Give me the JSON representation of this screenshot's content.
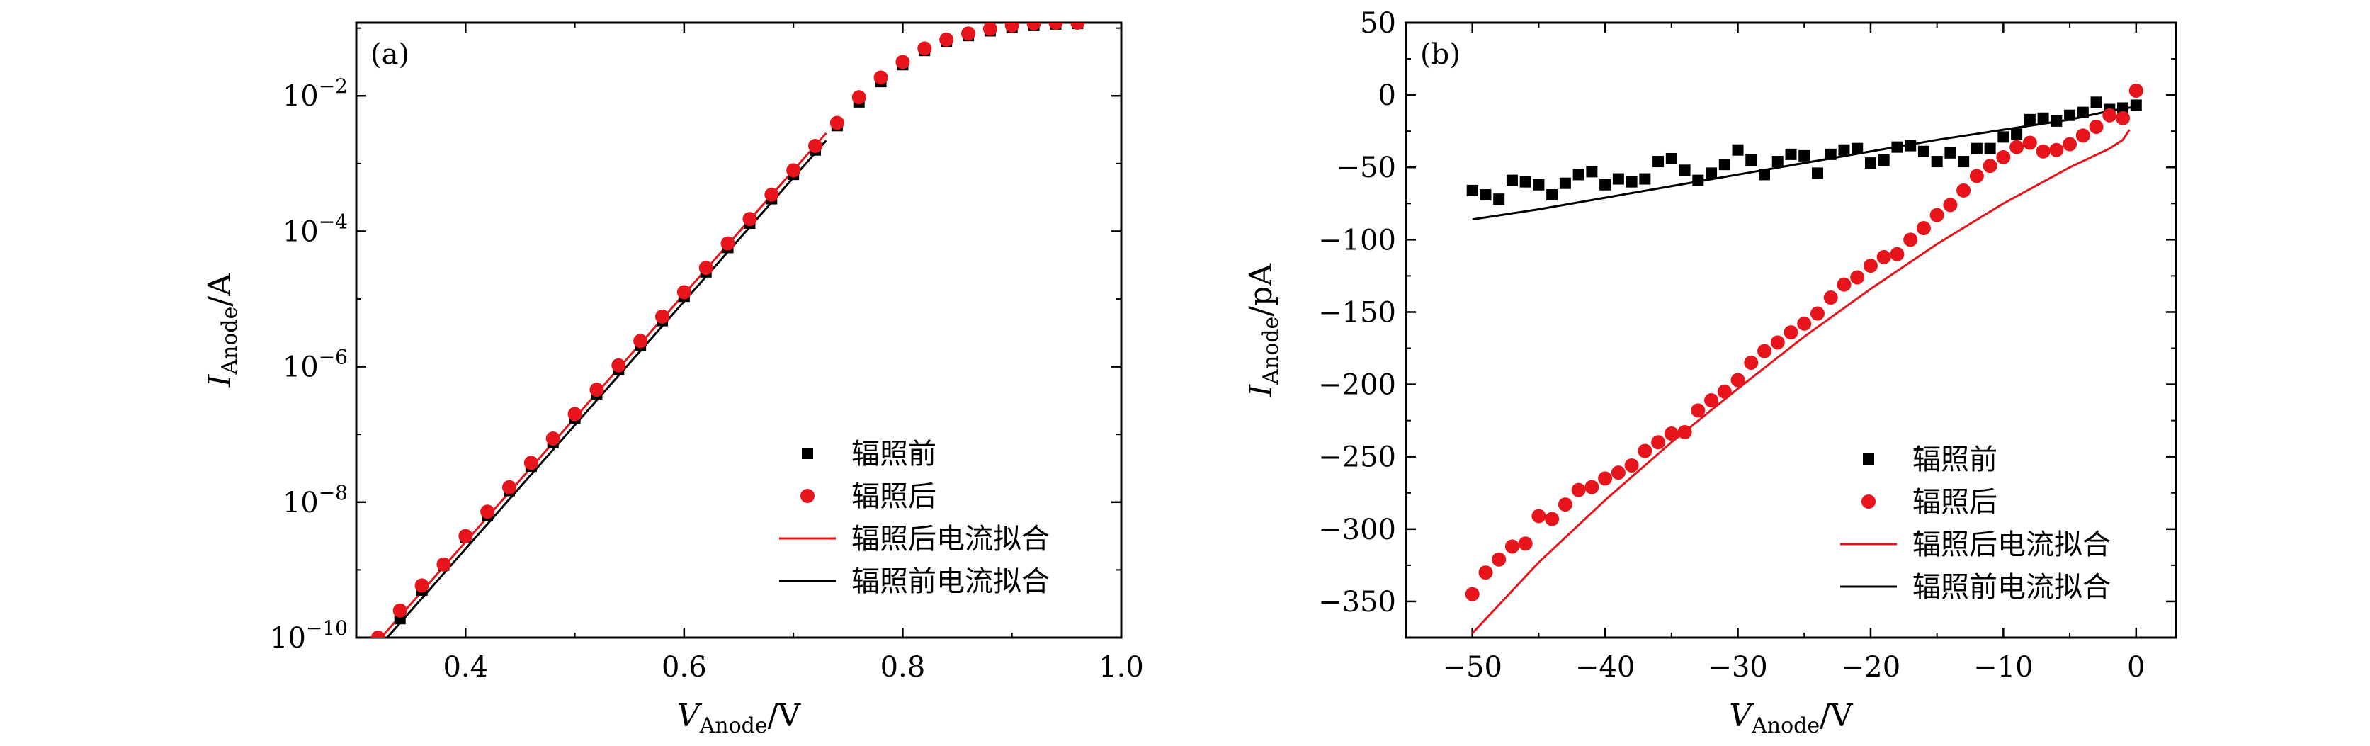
{
  "chart_data": [
    {
      "id": "a",
      "type": "scatter",
      "panel_label": "(a)",
      "xlabel": {
        "main": "V",
        "sub": "Anode",
        "unit": "/V"
      },
      "ylabel": {
        "main": "I",
        "sub": "Anode",
        "unit": "/A"
      },
      "xlim": [
        0.3,
        1.0
      ],
      "ylim_log10": [
        -10,
        -0.92
      ],
      "yscale": "log",
      "x_ticks": [
        {
          "value": 0.4,
          "label": "0.4"
        },
        {
          "value": 0.6,
          "label": "0.6"
        },
        {
          "value": 0.8,
          "label": "0.8"
        },
        {
          "value": 1.0,
          "label": "1.0"
        }
      ],
      "y_ticks": [
        {
          "value": -10,
          "base": "10",
          "exp": "−10"
        },
        {
          "value": -8,
          "base": "10",
          "exp": "−8"
        },
        {
          "value": -6,
          "base": "10",
          "exp": "−6"
        },
        {
          "value": -4,
          "base": "10",
          "exp": "−4"
        },
        {
          "value": -2,
          "base": "10",
          "exp": "−2"
        }
      ],
      "legend_position": "bottom-right",
      "series": [
        {
          "name": "辐照前",
          "kind": "square",
          "color": "#000000",
          "x": [
            0.34,
            0.36,
            0.38,
            0.4,
            0.42,
            0.44,
            0.46,
            0.48,
            0.5,
            0.52,
            0.54,
            0.56,
            0.58,
            0.6,
            0.62,
            0.64,
            0.66,
            0.68,
            0.7,
            0.72,
            0.74,
            0.76,
            0.78,
            0.8,
            0.82,
            0.84,
            0.86,
            0.88,
            0.9,
            0.92,
            0.94,
            0.96
          ],
          "log10y": [
            -9.72,
            -9.3,
            -8.93,
            -8.52,
            -8.2,
            -7.83,
            -7.47,
            -7.12,
            -6.76,
            -6.4,
            -6.04,
            -5.68,
            -5.32,
            -4.96,
            -4.6,
            -4.24,
            -3.88,
            -3.52,
            -3.16,
            -2.8,
            -2.44,
            -2.09,
            -1.79,
            -1.54,
            -1.33,
            -1.2,
            -1.11,
            -1.04,
            -0.99,
            -0.96,
            -0.94,
            -0.93
          ]
        },
        {
          "name": "辐照后",
          "kind": "circle",
          "color": "#e8141c",
          "x": [
            0.32,
            0.34,
            0.36,
            0.38,
            0.4,
            0.42,
            0.44,
            0.46,
            0.48,
            0.5,
            0.52,
            0.54,
            0.56,
            0.58,
            0.6,
            0.62,
            0.64,
            0.66,
            0.68,
            0.7,
            0.72,
            0.74,
            0.76,
            0.78,
            0.8,
            0.82,
            0.84,
            0.86,
            0.88,
            0.9,
            0.92,
            0.94,
            0.96
          ],
          "log10y": [
            -10.0,
            -9.6,
            -9.23,
            -8.92,
            -8.5,
            -8.14,
            -7.78,
            -7.42,
            -7.06,
            -6.7,
            -6.34,
            -5.98,
            -5.62,
            -5.26,
            -4.9,
            -4.54,
            -4.18,
            -3.82,
            -3.46,
            -3.1,
            -2.74,
            -2.4,
            -2.02,
            -1.73,
            -1.5,
            -1.3,
            -1.17,
            -1.08,
            -1.01,
            -0.96,
            -0.93,
            -0.92,
            -0.92
          ]
        },
        {
          "name": "辐照后电流拟合",
          "kind": "line",
          "color": "#e8141c",
          "x": [
            0.32,
            0.73
          ],
          "log10y": [
            -10.05,
            -2.55
          ]
        },
        {
          "name": "辐照前电流拟合",
          "kind": "line",
          "color": "#000000",
          "x": [
            0.32,
            0.73
          ],
          "log10y": [
            -10.15,
            -2.66
          ]
        }
      ]
    },
    {
      "id": "b",
      "type": "scatter",
      "panel_label": "(b)",
      "xlabel": {
        "main": "V",
        "sub": "Anode",
        "unit": "/V"
      },
      "ylabel": {
        "main": "I",
        "sub": "Anode",
        "unit": "/pA"
      },
      "xlim": [
        -55,
        3
      ],
      "ylim": [
        -375,
        50
      ],
      "x_ticks": [
        {
          "value": -50,
          "label": "−50"
        },
        {
          "value": -40,
          "label": "−40"
        },
        {
          "value": -30,
          "label": "−30"
        },
        {
          "value": -20,
          "label": "−20"
        },
        {
          "value": -10,
          "label": "−10"
        },
        {
          "value": 0,
          "label": "0"
        }
      ],
      "y_ticks": [
        {
          "value": 50,
          "label": "50"
        },
        {
          "value": 0,
          "label": "0"
        },
        {
          "value": -50,
          "label": "−50"
        },
        {
          "value": -100,
          "label": "−100"
        },
        {
          "value": -150,
          "label": "−150"
        },
        {
          "value": -200,
          "label": "−200"
        },
        {
          "value": -250,
          "label": "−250"
        },
        {
          "value": -300,
          "label": "−300"
        },
        {
          "value": -350,
          "label": "−350"
        }
      ],
      "legend_position": "bottom-right",
      "series": [
        {
          "name": "辐照前",
          "kind": "square",
          "color": "#000000",
          "x": [
            -50,
            -49,
            -48,
            -47,
            -46,
            -45,
            -44,
            -43,
            -42,
            -41,
            -40,
            -39,
            -38,
            -37,
            -36,
            -35,
            -34,
            -33,
            -32,
            -31,
            -30,
            -29,
            -28,
            -27,
            -26,
            -25,
            -24,
            -23,
            -22,
            -21,
            -20,
            -19,
            -18,
            -17,
            -16,
            -15,
            -14,
            -13,
            -12,
            -11,
            -10,
            -9,
            -8,
            -7,
            -6,
            -5,
            -4,
            -3,
            -2,
            -1,
            0
          ],
          "y": [
            -66,
            -69,
            -72,
            -59,
            -60,
            -62,
            -69,
            -61,
            -55,
            -53,
            -62,
            -58,
            -60,
            -58,
            -46,
            -44,
            -52,
            -59,
            -54,
            -48,
            -38,
            -45,
            -55,
            -46,
            -41,
            -42,
            -54,
            -41,
            -38,
            -37,
            -47,
            -45,
            -36,
            -35,
            -39,
            -46,
            -40,
            -46,
            -37,
            -37,
            -29,
            -27,
            -17,
            -16,
            -18,
            -14,
            -12,
            -5,
            -10,
            -9,
            -7
          ]
        },
        {
          "name": "辐照后",
          "kind": "circle",
          "color": "#e8141c",
          "x": [
            -50,
            -49,
            -48,
            -47,
            -46,
            -45,
            -44,
            -43,
            -42,
            -41,
            -40,
            -39,
            -38,
            -37,
            -36,
            -35,
            -34,
            -33,
            -32,
            -31,
            -30,
            -29,
            -28,
            -27,
            -26,
            -25,
            -24,
            -23,
            -22,
            -21,
            -20,
            -19,
            -18,
            -17,
            -16,
            -15,
            -14,
            -13,
            -12,
            -11,
            -10,
            -9,
            -8,
            -7,
            -6,
            -5,
            -4,
            -3,
            -2,
            -1,
            0
          ],
          "y": [
            -345,
            -330,
            -321,
            -312,
            -310,
            -291,
            -293,
            -283,
            -273,
            -271,
            -265,
            -261,
            -256,
            -246,
            -240,
            -234,
            -233,
            -218,
            -211,
            -205,
            -197,
            -185,
            -177,
            -171,
            -164,
            -158,
            -151,
            -140,
            -131,
            -126,
            -118,
            -112,
            -110,
            -100,
            -92,
            -83,
            -76,
            -66,
            -56,
            -49,
            -43,
            -36,
            -33,
            -39,
            -38,
            -34,
            -28,
            -22,
            -14,
            -16,
            3
          ]
        },
        {
          "name": "辐照后电流拟合",
          "kind": "line",
          "color": "#e8141c",
          "x": [
            -50,
            -45,
            -40,
            -35,
            -30,
            -25,
            -20,
            -15,
            -10,
            -5,
            -2,
            -1,
            -0.5
          ],
          "y": [
            -372,
            -323,
            -280,
            -240,
            -203,
            -167,
            -134,
            -103,
            -75,
            -50,
            -37,
            -31,
            -24
          ]
        },
        {
          "name": "辐照前电流拟合",
          "kind": "line",
          "color": "#000000",
          "x": [
            -50,
            -45,
            -40,
            -35,
            -30,
            -25,
            -20,
            -15,
            -10,
            -5,
            -2,
            0
          ],
          "y": [
            -86,
            -79,
            -71,
            -63,
            -55,
            -47,
            -39,
            -31,
            -24,
            -17,
            -11,
            -8
          ]
        }
      ]
    }
  ]
}
